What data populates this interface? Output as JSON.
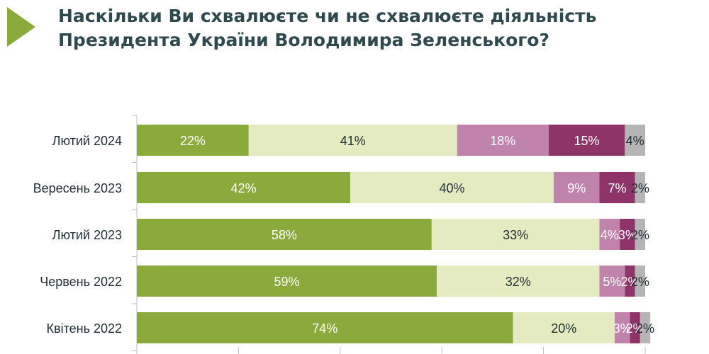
{
  "title_lines": [
    "Наскільки Ви схвалюєте чи не схвалюєте діяльність",
    "Президента України Володимира Зеленського?"
  ],
  "colors": {
    "arrow": "#8aab3c",
    "title": "#2f4a4f",
    "series": [
      "#8aab3c",
      "#e4ebc0",
      "#c084ac",
      "#8e3468",
      "#b5b5b5"
    ],
    "label_light": "#ffffff",
    "label_dark": "#1f2e33"
  },
  "chart_data": {
    "type": "bar",
    "orientation": "horizontal",
    "stacked": true,
    "categories": [
      "Лютий 2024",
      "Вересень 2023",
      "Лютий 2023",
      "Червень 2022",
      "Квітень 2022"
    ],
    "series": [
      {
        "values": [
          22,
          42,
          58,
          59,
          74
        ],
        "labels": [
          "22%",
          "42%",
          "58%",
          "59%",
          "74%"
        ]
      },
      {
        "values": [
          41,
          40,
          33,
          32,
          20
        ],
        "labels": [
          "41%",
          "40%",
          "33%",
          "32%",
          "20%"
        ]
      },
      {
        "values": [
          18,
          9,
          4,
          5,
          3
        ],
        "labels": [
          "18%",
          "9%",
          "4%",
          "5%",
          "3%"
        ]
      },
      {
        "values": [
          15,
          7,
          3,
          2,
          2
        ],
        "labels": [
          "15%",
          "7%",
          "3%",
          "2%",
          "2%"
        ]
      },
      {
        "values": [
          4,
          2,
          2,
          2,
          2
        ],
        "labels": [
          "4%",
          "2%",
          "2%",
          "2%",
          "2%"
        ]
      }
    ],
    "xlim": [
      0,
      100
    ],
    "legend": "none"
  }
}
